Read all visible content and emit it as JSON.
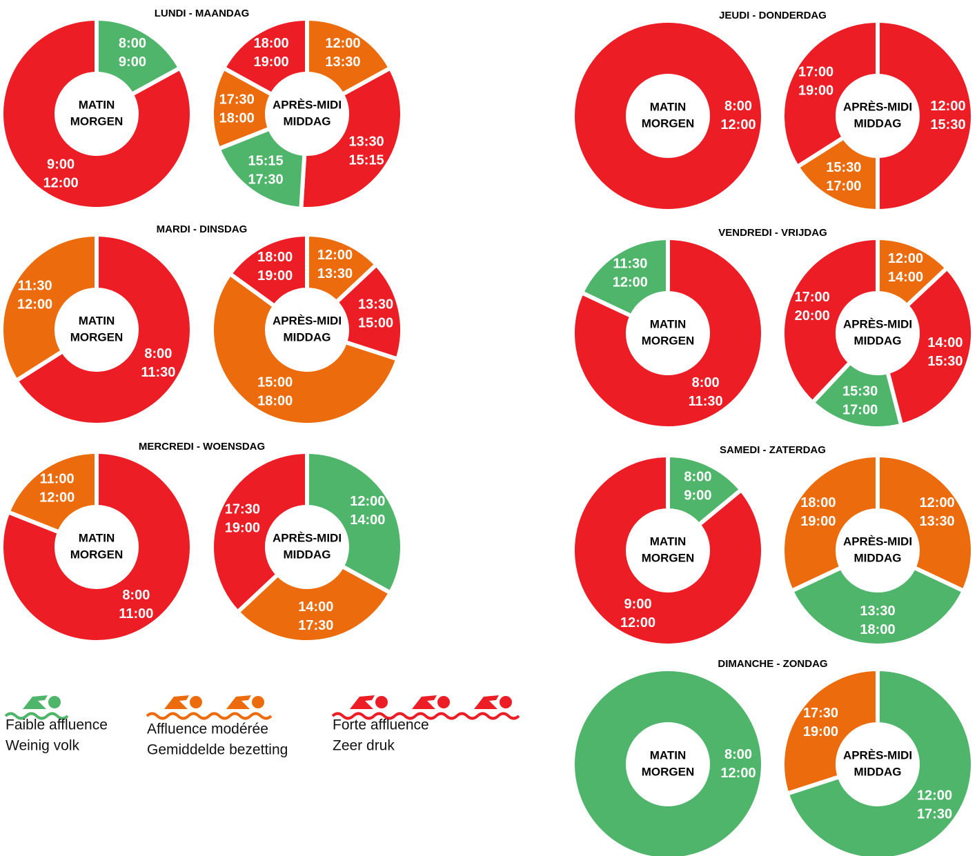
{
  "days": [
    {
      "title": "LUNDI - MAANDAG",
      "charts": [
        {
          "type": "donut",
          "center": [
            "MATIN",
            "MORGEN"
          ],
          "values": [
            17,
            83
          ],
          "labels": [
            [
              "8:00",
              "9:00"
            ],
            [
              "9:00",
              "12:00"
            ]
          ],
          "levels": [
            0,
            2
          ]
        },
        {
          "type": "donut",
          "center": [
            "APRÈS-MIDI",
            "MIDDAG"
          ],
          "values": [
            17,
            34,
            18,
            14,
            17
          ],
          "labels": [
            [
              "12:00",
              "13:30"
            ],
            [
              "13:30",
              "15:15"
            ],
            [
              "15:15",
              "17:30"
            ],
            [
              "17:30",
              "18:00"
            ],
            [
              "18:00",
              "19:00"
            ]
          ],
          "levels": [
            1,
            2,
            0,
            1,
            2
          ]
        }
      ]
    },
    {
      "title": "MARDI - DINSDAG",
      "charts": [
        {
          "type": "donut",
          "center": [
            "MATIN",
            "MORGEN"
          ],
          "values": [
            66,
            34
          ],
          "labels": [
            [
              "8:00",
              "11:30"
            ],
            [
              "11:30",
              "12:00"
            ]
          ],
          "levels": [
            2,
            1
          ]
        },
        {
          "type": "donut",
          "center": [
            "APRÈS-MIDI",
            "MIDDAG"
          ],
          "values": [
            13,
            17,
            55,
            15
          ],
          "labels": [
            [
              "12:00",
              "13:30"
            ],
            [
              "13:30",
              "15:00"
            ],
            [
              "15:00",
              "18:00"
            ],
            [
              "18:00",
              "19:00"
            ]
          ],
          "levels": [
            1,
            2,
            1,
            2
          ]
        }
      ]
    },
    {
      "title": "MERCREDI - WOENSDAG",
      "charts": [
        {
          "type": "donut",
          "center": [
            "MATIN",
            "MORGEN"
          ],
          "values": [
            81,
            19
          ],
          "labels": [
            [
              "8:00",
              "11:00"
            ],
            [
              "11:00",
              "12:00"
            ]
          ],
          "levels": [
            2,
            1
          ]
        },
        {
          "type": "donut",
          "center": [
            "APRÈS-MIDI",
            "MIDDAG"
          ],
          "values": [
            33,
            30,
            37
          ],
          "labels": [
            [
              "12:00",
              "14:00"
            ],
            [
              "14:00",
              "17:30"
            ],
            [
              "17:30",
              "19:00"
            ]
          ],
          "levels": [
            0,
            1,
            2
          ]
        }
      ]
    },
    {
      "title": "JEUDI - DONDERDAG",
      "charts": [
        {
          "type": "donut",
          "center": [
            "MATIN",
            "MORGEN"
          ],
          "values": [
            100
          ],
          "labels": [
            [
              "8:00",
              "12:00"
            ]
          ],
          "levels": [
            2
          ]
        },
        {
          "type": "donut",
          "center": [
            "APRÈS-MIDI",
            "MIDDAG"
          ],
          "values": [
            50,
            16,
            34
          ],
          "labels": [
            [
              "12:00",
              "15:30"
            ],
            [
              "15:30",
              "17:00"
            ],
            [
              "17:00",
              "19:00"
            ]
          ],
          "levels": [
            2,
            1,
            2
          ]
        }
      ]
    },
    {
      "title": "VENDREDI - VRIJDAG",
      "charts": [
        {
          "type": "donut",
          "center": [
            "MATIN",
            "MORGEN"
          ],
          "values": [
            82,
            18
          ],
          "labels": [
            [
              "8:00",
              "11:30"
            ],
            [
              "11:30",
              "12:00"
            ]
          ],
          "levels": [
            2,
            0
          ]
        },
        {
          "type": "donut",
          "center": [
            "APRÈS-MIDI",
            "MIDDAG"
          ],
          "values": [
            13,
            33,
            16,
            38
          ],
          "labels": [
            [
              "12:00",
              "14:00"
            ],
            [
              "14:00",
              "15:30"
            ],
            [
              "15:30",
              "17:00"
            ],
            [
              "17:00",
              "20:00"
            ]
          ],
          "levels": [
            1,
            2,
            0,
            2
          ]
        }
      ]
    },
    {
      "title": "SAMEDI - ZATERDAG",
      "charts": [
        {
          "type": "donut",
          "center": [
            "MATIN",
            "MORGEN"
          ],
          "values": [
            14,
            86
          ],
          "labels": [
            [
              "8:00",
              "9:00"
            ],
            [
              "9:00",
              "12:00"
            ]
          ],
          "levels": [
            0,
            2
          ]
        },
        {
          "type": "donut",
          "center": [
            "APRÈS-MIDI",
            "MIDDAG"
          ],
          "values": [
            32,
            36,
            32
          ],
          "labels": [
            [
              "12:00",
              "13:30"
            ],
            [
              "13:30",
              "18:00"
            ],
            [
              "18:00",
              "19:00"
            ]
          ],
          "levels": [
            1,
            0,
            1
          ]
        }
      ]
    },
    {
      "title": "DIMANCHE - ZONDAG",
      "charts": [
        {
          "type": "donut",
          "center": [
            "MATIN",
            "MORGEN"
          ],
          "values": [
            100
          ],
          "labels": [
            [
              "8:00",
              "12:00"
            ]
          ],
          "levels": [
            0
          ]
        },
        {
          "type": "donut",
          "center": [
            "APRÈS-MIDI",
            "MIDDAG"
          ],
          "values": [
            70,
            30
          ],
          "labels": [
            [
              "12:00",
              "17:30"
            ],
            [
              "17:30",
              "19:00"
            ]
          ],
          "levels": [
            0,
            1
          ]
        }
      ]
    }
  ],
  "legend": [
    {
      "color": "#4fb56a",
      "swimmers": 1,
      "lines": [
        "Faible affluence",
        "Weinig volk"
      ]
    },
    {
      "color": "#ec6b0c",
      "swimmers": 2,
      "lines": [
        "Affluence modérée",
        "Gemiddelde bezetting"
      ]
    },
    {
      "color": "#ec1d25",
      "swimmers": 3,
      "lines": [
        "Forte affluence",
        "Zeer druk"
      ]
    }
  ]
}
